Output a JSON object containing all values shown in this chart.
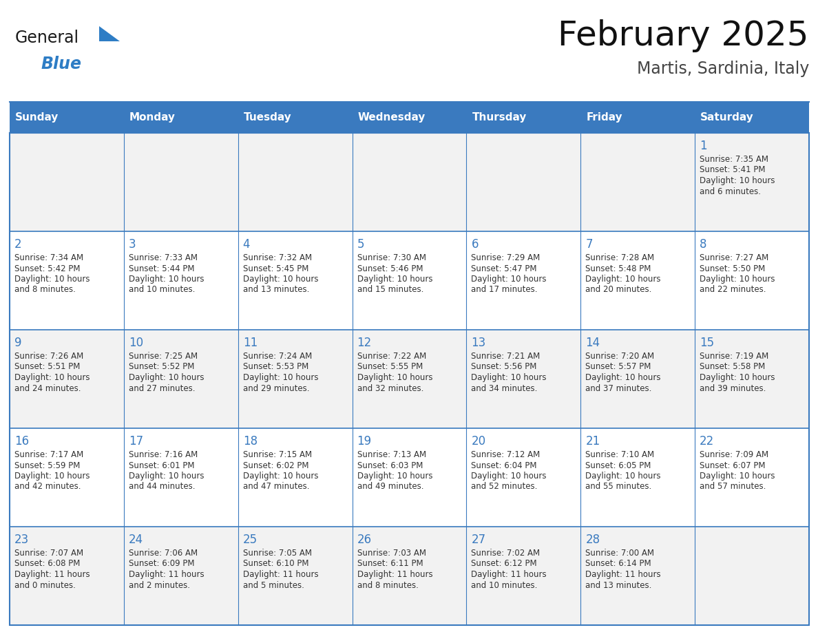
{
  "title": "February 2025",
  "subtitle": "Martis, Sardinia, Italy",
  "days_of_week": [
    "Sunday",
    "Monday",
    "Tuesday",
    "Wednesday",
    "Thursday",
    "Friday",
    "Saturday"
  ],
  "header_color": "#3a7abf",
  "header_text_color": "#ffffff",
  "cell_bg_even": "#f2f2f2",
  "cell_bg_odd": "#ffffff",
  "border_color": "#3a7abf",
  "day_number_color": "#3a7abf",
  "text_color": "#333333",
  "logo_general_color": "#1a1a1a",
  "logo_blue_color": "#2e7dc5",
  "logo_triangle_color": "#2e7dc5",
  "weeks": [
    [
      {
        "day": null,
        "info": null
      },
      {
        "day": null,
        "info": null
      },
      {
        "day": null,
        "info": null
      },
      {
        "day": null,
        "info": null
      },
      {
        "day": null,
        "info": null
      },
      {
        "day": null,
        "info": null
      },
      {
        "day": 1,
        "info": "Sunrise: 7:35 AM\nSunset: 5:41 PM\nDaylight: 10 hours\nand 6 minutes."
      }
    ],
    [
      {
        "day": 2,
        "info": "Sunrise: 7:34 AM\nSunset: 5:42 PM\nDaylight: 10 hours\nand 8 minutes."
      },
      {
        "day": 3,
        "info": "Sunrise: 7:33 AM\nSunset: 5:44 PM\nDaylight: 10 hours\nand 10 minutes."
      },
      {
        "day": 4,
        "info": "Sunrise: 7:32 AM\nSunset: 5:45 PM\nDaylight: 10 hours\nand 13 minutes."
      },
      {
        "day": 5,
        "info": "Sunrise: 7:30 AM\nSunset: 5:46 PM\nDaylight: 10 hours\nand 15 minutes."
      },
      {
        "day": 6,
        "info": "Sunrise: 7:29 AM\nSunset: 5:47 PM\nDaylight: 10 hours\nand 17 minutes."
      },
      {
        "day": 7,
        "info": "Sunrise: 7:28 AM\nSunset: 5:48 PM\nDaylight: 10 hours\nand 20 minutes."
      },
      {
        "day": 8,
        "info": "Sunrise: 7:27 AM\nSunset: 5:50 PM\nDaylight: 10 hours\nand 22 minutes."
      }
    ],
    [
      {
        "day": 9,
        "info": "Sunrise: 7:26 AM\nSunset: 5:51 PM\nDaylight: 10 hours\nand 24 minutes."
      },
      {
        "day": 10,
        "info": "Sunrise: 7:25 AM\nSunset: 5:52 PM\nDaylight: 10 hours\nand 27 minutes."
      },
      {
        "day": 11,
        "info": "Sunrise: 7:24 AM\nSunset: 5:53 PM\nDaylight: 10 hours\nand 29 minutes."
      },
      {
        "day": 12,
        "info": "Sunrise: 7:22 AM\nSunset: 5:55 PM\nDaylight: 10 hours\nand 32 minutes."
      },
      {
        "day": 13,
        "info": "Sunrise: 7:21 AM\nSunset: 5:56 PM\nDaylight: 10 hours\nand 34 minutes."
      },
      {
        "day": 14,
        "info": "Sunrise: 7:20 AM\nSunset: 5:57 PM\nDaylight: 10 hours\nand 37 minutes."
      },
      {
        "day": 15,
        "info": "Sunrise: 7:19 AM\nSunset: 5:58 PM\nDaylight: 10 hours\nand 39 minutes."
      }
    ],
    [
      {
        "day": 16,
        "info": "Sunrise: 7:17 AM\nSunset: 5:59 PM\nDaylight: 10 hours\nand 42 minutes."
      },
      {
        "day": 17,
        "info": "Sunrise: 7:16 AM\nSunset: 6:01 PM\nDaylight: 10 hours\nand 44 minutes."
      },
      {
        "day": 18,
        "info": "Sunrise: 7:15 AM\nSunset: 6:02 PM\nDaylight: 10 hours\nand 47 minutes."
      },
      {
        "day": 19,
        "info": "Sunrise: 7:13 AM\nSunset: 6:03 PM\nDaylight: 10 hours\nand 49 minutes."
      },
      {
        "day": 20,
        "info": "Sunrise: 7:12 AM\nSunset: 6:04 PM\nDaylight: 10 hours\nand 52 minutes."
      },
      {
        "day": 21,
        "info": "Sunrise: 7:10 AM\nSunset: 6:05 PM\nDaylight: 10 hours\nand 55 minutes."
      },
      {
        "day": 22,
        "info": "Sunrise: 7:09 AM\nSunset: 6:07 PM\nDaylight: 10 hours\nand 57 minutes."
      }
    ],
    [
      {
        "day": 23,
        "info": "Sunrise: 7:07 AM\nSunset: 6:08 PM\nDaylight: 11 hours\nand 0 minutes."
      },
      {
        "day": 24,
        "info": "Sunrise: 7:06 AM\nSunset: 6:09 PM\nDaylight: 11 hours\nand 2 minutes."
      },
      {
        "day": 25,
        "info": "Sunrise: 7:05 AM\nSunset: 6:10 PM\nDaylight: 11 hours\nand 5 minutes."
      },
      {
        "day": 26,
        "info": "Sunrise: 7:03 AM\nSunset: 6:11 PM\nDaylight: 11 hours\nand 8 minutes."
      },
      {
        "day": 27,
        "info": "Sunrise: 7:02 AM\nSunset: 6:12 PM\nDaylight: 11 hours\nand 10 minutes."
      },
      {
        "day": 28,
        "info": "Sunrise: 7:00 AM\nSunset: 6:14 PM\nDaylight: 11 hours\nand 13 minutes."
      },
      {
        "day": null,
        "info": null
      }
    ]
  ]
}
